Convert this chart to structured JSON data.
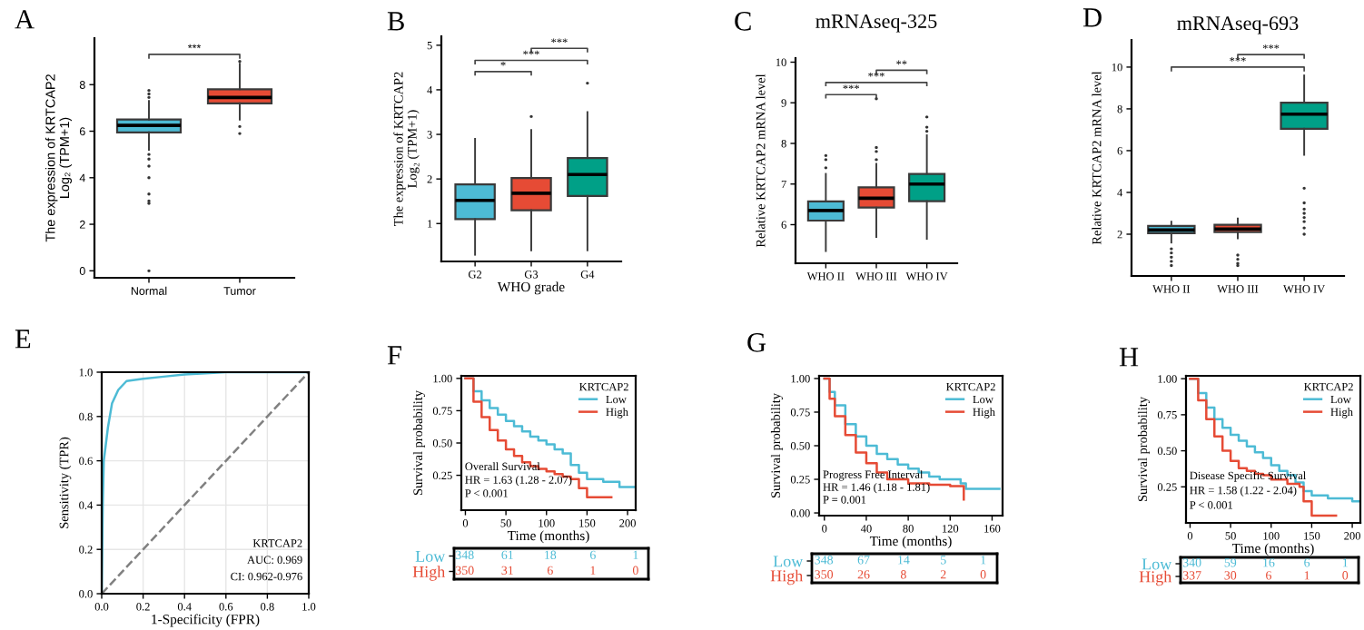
{
  "chart_data": [
    {
      "type": "box",
      "categories": [
        "Normal",
        "Tumor"
      ],
      "colors": [
        "#4dbbd5",
        "#e64b35"
      ],
      "ylabel": "The expression of KRTCAP2\nLog₂ (TPM+1)",
      "ylim": [
        -0.3,
        10
      ],
      "yticks": [
        0,
        2,
        4,
        6,
        8
      ],
      "boxes": [
        {
          "low": 5.2,
          "q1": 5.95,
          "median": 6.25,
          "q3": 6.5,
          "high": 7.3,
          "outliers": [
            7.45,
            7.6,
            7.75,
            5.0,
            4.8,
            4.5,
            4.0,
            3.3,
            3.0,
            2.9,
            0
          ]
        },
        {
          "low": 6.5,
          "q1": 7.2,
          "median": 7.45,
          "q3": 7.8,
          "high": 8.9,
          "outliers": [
            6.2,
            5.9,
            9.0
          ]
        }
      ],
      "annotations": [
        "A",
        "***"
      ]
    },
    {
      "type": "box",
      "categories": [
        "G2",
        "G3",
        "G4"
      ],
      "colors": [
        "#4dbbd5",
        "#e64b35",
        "#00a087"
      ],
      "xlabel": "WHO grade",
      "ylabel": "The expression of KRTCAP2\nLog₂ (TPM+1)",
      "ylim": [
        0.15,
        5.2
      ],
      "yticks": [
        1,
        2,
        3,
        4,
        5
      ],
      "boxes": [
        {
          "low": 0.3,
          "q1": 1.1,
          "median": 1.52,
          "q3": 1.88,
          "high": 2.9
        },
        {
          "low": 0.4,
          "q1": 1.3,
          "median": 1.68,
          "q3": 2.02,
          "high": 3.1,
          "outliers": [
            3.4
          ]
        },
        {
          "low": 0.4,
          "q1": 1.62,
          "median": 2.1,
          "q3": 2.47,
          "high": 3.5,
          "outliers": [
            4.15
          ]
        }
      ],
      "annotations": [
        "B",
        "*",
        "***",
        "***"
      ]
    },
    {
      "type": "box",
      "title": "mRNAseq-325",
      "categories": [
        "WHO II",
        "WHO III",
        "WHO IV"
      ],
      "colors": [
        "#4dbbd5",
        "#e64b35",
        "#00a087"
      ],
      "ylabel": "Relative KRTCAP2 mRNA level",
      "ylim": [
        5.05,
        10.1
      ],
      "yticks": [
        6,
        7,
        8,
        9,
        10
      ],
      "boxes": [
        {
          "low": 5.35,
          "q1": 6.1,
          "median": 6.35,
          "q3": 6.57,
          "high": 7.25,
          "outliers": [
            7.4,
            7.6,
            7.7
          ]
        },
        {
          "low": 5.7,
          "q1": 6.42,
          "median": 6.65,
          "q3": 6.92,
          "high": 7.5,
          "outliers": [
            7.6,
            7.8,
            7.9,
            9.1
          ]
        },
        {
          "low": 5.65,
          "q1": 6.58,
          "median": 7.0,
          "q3": 7.25,
          "high": 8.2,
          "outliers": [
            8.3,
            8.4,
            8.65
          ]
        }
      ],
      "annotations": [
        "C",
        "***",
        "***",
        "**"
      ]
    },
    {
      "type": "box",
      "title": "mRNAseq-693",
      "categories": [
        "WHO II",
        "WHO III",
        "WHO IV"
      ],
      "colors": [
        "#4dbbd5",
        "#e64b35",
        "#00a087"
      ],
      "ylabel": "Relative KRTCAP2 mRNA level",
      "ylim": [
        0,
        11.3
      ],
      "yticks": [
        2,
        4,
        6,
        8,
        10
      ],
      "boxes": [
        {
          "low": 1.6,
          "q1": 2.05,
          "median": 2.2,
          "q3": 2.4,
          "high": 2.6,
          "outliers": [
            1.3,
            1.1,
            0.9,
            0.7,
            0.5
          ]
        },
        {
          "low": 1.8,
          "q1": 2.1,
          "median": 2.25,
          "q3": 2.45,
          "high": 2.75,
          "outliers": [
            1.0,
            0.8,
            0.6,
            0.5
          ]
        },
        {
          "low": 5.8,
          "q1": 7.05,
          "median": 7.75,
          "q3": 8.3,
          "high": 9.6,
          "outliers": [
            4.2,
            3.5,
            3.2,
            3.0,
            2.8,
            2.6,
            2.3,
            2.0
          ]
        }
      ],
      "annotations": [
        "D",
        "***",
        "***"
      ]
    },
    {
      "type": "line",
      "xlabel": "1-Specificity (FPR)",
      "ylabel": "Sensitivity (TPR)",
      "xlim": [
        0,
        1
      ],
      "ylim": [
        0,
        1
      ],
      "xticks": [
        {
          "value": 0,
          "label": "0.0"
        },
        {
          "value": 0.2,
          "label": "0.2"
        },
        {
          "value": 0.4,
          "label": "0.4"
        },
        {
          "value": 0.6,
          "label": "0.6"
        },
        {
          "value": 0.8,
          "label": "0.8"
        },
        {
          "value": 1,
          "label": "1.0"
        }
      ],
      "yticks": [
        {
          "value": 0,
          "label": "0.0"
        },
        {
          "value": 0.2,
          "label": "0.2"
        },
        {
          "value": 0.4,
          "label": "0.4"
        },
        {
          "value": 0.6,
          "label": "0.6"
        },
        {
          "value": 0.8,
          "label": "0.8"
        },
        {
          "value": 1,
          "label": "1.0"
        }
      ],
      "grid": true,
      "series": [
        {
          "color": "#4dbbd5",
          "x": [
            0,
            0.005,
            0.01,
            0.03,
            0.05,
            0.08,
            0.12,
            0.2,
            0.3,
            0.4,
            0.6,
            1
          ],
          "values": [
            0,
            0.4,
            0.6,
            0.75,
            0.86,
            0.92,
            0.96,
            0.97,
            0.98,
            0.99,
            1,
            1
          ]
        },
        {
          "color": "#808080",
          "line_style": "dashed",
          "x": [
            0,
            1
          ],
          "values": [
            0,
            1
          ]
        }
      ],
      "annotations": [
        "E",
        "KRTCAP2",
        "AUC: 0.969",
        "CI: 0.962-0.976"
      ]
    },
    {
      "type": "step",
      "xlabel": "Time (months)",
      "ylabel": "Survival probability",
      "xlim": [
        -5,
        210
      ],
      "ylim": [
        -0.02,
        1.02
      ],
      "xticks": [
        0,
        50,
        100,
        150,
        200
      ],
      "yticks": [
        {
          "value": 0.25,
          "label": "0.25"
        },
        {
          "value": 0.5,
          "label": "0.50"
        },
        {
          "value": 0.75,
          "label": "0.75"
        },
        {
          "value": 1,
          "label": "1.00"
        }
      ],
      "legend": "top right",
      "legend_title": "KRTCAP2",
      "series": [
        {
          "name": "Low",
          "color": "#4dbbd5",
          "x": [
            0,
            10,
            20,
            30,
            40,
            50,
            60,
            70,
            80,
            90,
            100,
            110,
            120,
            130,
            140,
            150,
            170,
            190,
            210
          ],
          "values": [
            1,
            0.9,
            0.83,
            0.77,
            0.72,
            0.67,
            0.63,
            0.59,
            0.55,
            0.52,
            0.49,
            0.45,
            0.42,
            0.33,
            0.27,
            0.22,
            0.2,
            0.16,
            0.16
          ]
        },
        {
          "name": "High",
          "color": "#e64b35",
          "x": [
            0,
            10,
            20,
            30,
            40,
            50,
            60,
            70,
            80,
            90,
            100,
            110,
            120,
            130,
            140,
            150,
            180
          ],
          "values": [
            1,
            0.82,
            0.7,
            0.6,
            0.52,
            0.45,
            0.4,
            0.35,
            0.32,
            0.3,
            0.28,
            0.26,
            0.24,
            0.22,
            0.15,
            0.08,
            0.08
          ]
        }
      ],
      "annotations": [
        "F",
        "Overall Survival",
        "HR = 1.63 (1.28 - 2.07)",
        "P < 0.001"
      ]
    },
    {
      "type": "other",
      "y_categories": [
        "Low",
        "High"
      ],
      "colors": [
        "#4dbbd5",
        "#e64b35"
      ],
      "annotations": [
        "348",
        "61",
        "18",
        "6",
        "1",
        "350",
        "31",
        "6",
        "1",
        "0"
      ]
    },
    {
      "type": "step",
      "xlabel": "Time (months)",
      "ylabel": "Survival probability",
      "xlim": [
        -5,
        170
      ],
      "ylim": [
        -0.02,
        1.02
      ],
      "xticks": [
        0,
        40,
        80,
        120,
        160
      ],
      "yticks": [
        {
          "value": 0,
          "label": "0.00"
        },
        {
          "value": 0.25,
          "label": "0.25"
        },
        {
          "value": 0.5,
          "label": "0.50"
        },
        {
          "value": 0.75,
          "label": "0.75"
        },
        {
          "value": 1,
          "label": "1.00"
        }
      ],
      "legend": "top right",
      "legend_title": "KRTCAP2",
      "series": [
        {
          "name": "Low",
          "color": "#4dbbd5",
          "x": [
            0,
            5,
            10,
            20,
            30,
            40,
            50,
            60,
            70,
            80,
            90,
            100,
            110,
            130,
            135,
            150,
            167
          ],
          "values": [
            1,
            0.9,
            0.8,
            0.66,
            0.57,
            0.5,
            0.44,
            0.4,
            0.36,
            0.33,
            0.3,
            0.27,
            0.25,
            0.22,
            0.18,
            0.18,
            0.18
          ]
        },
        {
          "name": "High",
          "color": "#e64b35",
          "x": [
            0,
            5,
            10,
            20,
            30,
            40,
            50,
            60,
            80,
            100,
            120,
            133
          ],
          "values": [
            1,
            0.85,
            0.72,
            0.58,
            0.45,
            0.37,
            0.3,
            0.25,
            0.22,
            0.21,
            0.2,
            0.1
          ]
        }
      ],
      "annotations": [
        "G",
        "Progress Free Interval",
        "HR = 1.46 (1.18 - 1.81)",
        "P = 0.001"
      ]
    },
    {
      "type": "other",
      "y_categories": [
        "Low",
        "High"
      ],
      "colors": [
        "#4dbbd5",
        "#e64b35"
      ],
      "annotations": [
        "348",
        "67",
        "14",
        "5",
        "1",
        "350",
        "26",
        "8",
        "2",
        "0"
      ]
    },
    {
      "type": "step",
      "xlabel": "Time (months)",
      "ylabel": "Survival probability",
      "xlim": [
        -5,
        210
      ],
      "ylim": [
        0,
        1.02
      ],
      "xticks": [
        0,
        50,
        100,
        150,
        200
      ],
      "yticks": [
        {
          "value": 0.25,
          "label": "0.25"
        },
        {
          "value": 0.5,
          "label": "0.50"
        },
        {
          "value": 0.75,
          "label": "0.75"
        },
        {
          "value": 1,
          "label": "1.00"
        }
      ],
      "legend": "top right",
      "legend_title": "KRTCAP2",
      "series": [
        {
          "name": "Low",
          "color": "#4dbbd5",
          "x": [
            0,
            10,
            20,
            30,
            40,
            50,
            60,
            70,
            80,
            90,
            100,
            110,
            120,
            130,
            140,
            150,
            170,
            200,
            210
          ],
          "values": [
            1,
            0.9,
            0.8,
            0.72,
            0.66,
            0.61,
            0.57,
            0.53,
            0.49,
            0.45,
            0.4,
            0.36,
            0.33,
            0.28,
            0.22,
            0.19,
            0.17,
            0.15,
            0.15
          ]
        },
        {
          "name": "High",
          "color": "#e64b35",
          "x": [
            0,
            10,
            20,
            30,
            40,
            50,
            60,
            70,
            80,
            90,
            100,
            120,
            135,
            140,
            150,
            180
          ],
          "values": [
            1,
            0.85,
            0.72,
            0.6,
            0.5,
            0.43,
            0.38,
            0.36,
            0.34,
            0.33,
            0.3,
            0.27,
            0.25,
            0.15,
            0.05,
            0.05
          ]
        }
      ],
      "annotations": [
        "H",
        "Disease Specific Survival",
        "HR = 1.58 (1.22 - 2.04)",
        "P < 0.001"
      ]
    },
    {
      "type": "other",
      "y_categories": [
        "Low",
        "High"
      ],
      "colors": [
        "#4dbbd5",
        "#e64b35"
      ],
      "annotations": [
        "340",
        "59",
        "16",
        "6",
        "1",
        "337",
        "30",
        "6",
        "1",
        "0"
      ]
    }
  ]
}
